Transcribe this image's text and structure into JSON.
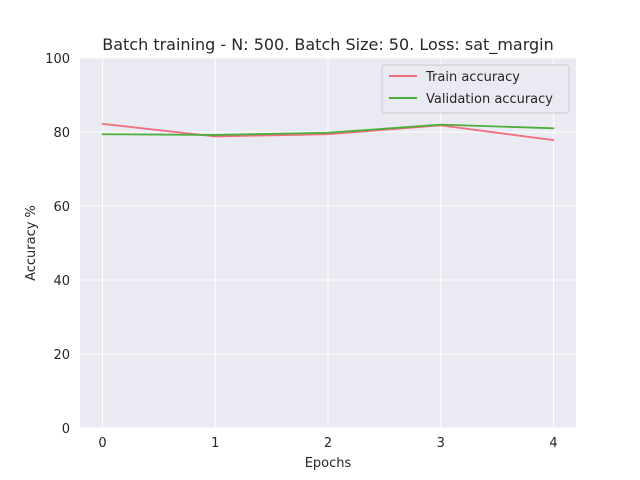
{
  "chart_data": {
    "type": "line",
    "title": "Batch training - N: 500. Batch Size: 50. Loss: sat_margin",
    "xlabel": "Epochs",
    "ylabel": "Accuracy %",
    "x": [
      0,
      1,
      2,
      3,
      4
    ],
    "xticks": [
      "0",
      "1",
      "2",
      "3",
      "4"
    ],
    "yticks": [
      "0",
      "20",
      "40",
      "60",
      "80",
      "100"
    ],
    "ylim": [
      0,
      100
    ],
    "grid": true,
    "legend_position": "top-right",
    "background": "#eaeaf2",
    "series": [
      {
        "name": "Train accuracy",
        "color": "#f06f7f",
        "values": [
          82.2,
          78.8,
          79.4,
          81.8,
          77.8
        ]
      },
      {
        "name": "Validation accuracy",
        "color": "#4caf3c",
        "values": [
          79.4,
          79.2,
          79.8,
          82.0,
          81.0
        ]
      }
    ]
  }
}
